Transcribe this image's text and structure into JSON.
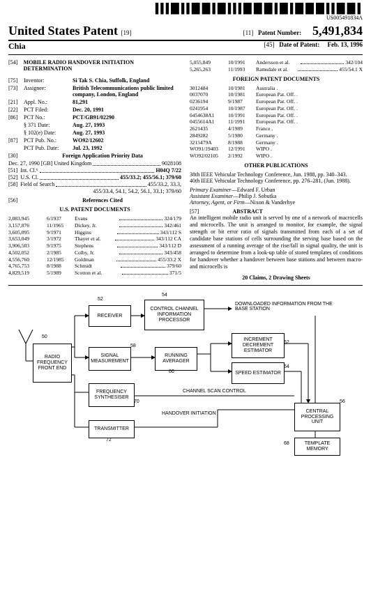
{
  "barcode_number": "US005491834A",
  "header": {
    "title": "United States Patent",
    "code19": "[19]",
    "code11": "[11]",
    "code45": "[45]",
    "pn_label": "Patent Number:",
    "pn_value": "5,491,834",
    "dp_label": "Date of Patent:",
    "dp_value": "Feb. 13, 1996",
    "inventor_surname": "Chia"
  },
  "left": {
    "f54_num": "[54]",
    "f54_title": "MOBILE RADIO HANDOVER INITIATION DETERMINATION",
    "f75_num": "[75]",
    "f75_label": "Inventor:",
    "f75_val": "Si Tak S. Chia, Suffolk, England",
    "f73_num": "[73]",
    "f73_label": "Assignee:",
    "f73_val": "British Telecommunications public limited company, London, England",
    "f21_num": "[21]",
    "f21_label": "Appl. No.:",
    "f21_val": "81,291",
    "f22_num": "[22]",
    "f22_label": "PCT Filed:",
    "f22_val": "Dec. 20, 1991",
    "f86_num": "[86]",
    "f86_label": "PCT No.:",
    "f86_val": "PCT/GB91/02290",
    "f371_label": "§ 371 Date:",
    "f371_val": "Aug. 27, 1993",
    "f102_label": "§ 102(e) Date:",
    "f102_val": "Aug. 27, 1993",
    "f87_num": "[87]",
    "f87_label": "PCT Pub. No.:",
    "f87_val": "WO92/12602",
    "f87d_label": "PCT Pub. Date:",
    "f87d_val": "Jul. 23, 1992",
    "f30_num": "[30]",
    "f30_label": "Foreign Application Priority Data",
    "f30_line": "Dec. 27, 1990   [GB]    United Kingdom",
    "f30_val": "9028108",
    "f51_num": "[51]",
    "f51_label": "Int. Cl.⁶",
    "f51_val": "H04Q 7/22",
    "f52_num": "[52]",
    "f52_label": "U.S. Cl.",
    "f52_val": "455/33.2; 455/56.1; 379/60",
    "f58_num": "[58]",
    "f58_label": "Field of Search",
    "f58_val": "455/33.2, 33.3,",
    "f58_val2": "455/33.4, 54.1, 54.2, 56.1, 33.1; 379/60",
    "f56_num": "[56]",
    "f56_label": "References Cited",
    "usdocs_head": "U.S. PATENT DOCUMENTS",
    "usdocs": [
      {
        "n": "2,083,945",
        "d": "6/1937",
        "a": "Evans",
        "c": "324/179"
      },
      {
        "n": "3,157,876",
        "d": "11/1965",
        "a": "Dickey, Jr.",
        "c": "342/461"
      },
      {
        "n": "3,605,095",
        "d": "9/1971",
        "a": "Higgins",
        "c": "343/112 S"
      },
      {
        "n": "3,653,049",
        "d": "3/1972",
        "a": "Thayer et al.",
        "c": "343/112 CA"
      },
      {
        "n": "3,906,503",
        "d": "9/1975",
        "a": "Stephens",
        "c": "343/112 D"
      },
      {
        "n": "4,502,052",
        "d": "2/1985",
        "a": "Colby, Jr.",
        "c": "343/458"
      },
      {
        "n": "4,556,760",
        "d": "12/1985",
        "a": "Goldman",
        "c": "455/33.2 X"
      },
      {
        "n": "4,765,753",
        "d": "8/1988",
        "a": "Schmidt",
        "c": "379/60"
      },
      {
        "n": "4,829,519",
        "d": "5/1989",
        "a": "Scotton et al.",
        "c": "371/5"
      }
    ]
  },
  "right": {
    "usdocs_cont": [
      {
        "n": "5,055,849",
        "d": "10/1991",
        "a": "Andersson et al.",
        "c": "342/104"
      },
      {
        "n": "5,265,263",
        "d": "11/1993",
        "a": "Ramsdale et al.",
        "c": "455/54.1 X"
      }
    ],
    "foreign_head": "FOREIGN PATENT DOCUMENTS",
    "foreign": [
      {
        "n": "3012484",
        "d": "10/1981",
        "a": "Australia ."
      },
      {
        "n": "0037070",
        "d": "10/1981",
        "a": "European Pat. Off. ."
      },
      {
        "n": "0236194",
        "d": "9/1987",
        "a": "European Pat. Off. ."
      },
      {
        "n": "0241954",
        "d": "10/1987",
        "a": "European Pat. Off. ."
      },
      {
        "n": "0454638A1",
        "d": "10/1991",
        "a": "European Pat. Off. ."
      },
      {
        "n": "0455614A1",
        "d": "11/1991",
        "a": "European Pat. Off. ."
      },
      {
        "n": "2621435",
        "d": "4/1989",
        "a": "France ."
      },
      {
        "n": "2849282",
        "d": "5/1980",
        "a": "Germany ."
      },
      {
        "n": "3215479A",
        "d": "8/1988",
        "a": "Germany ."
      },
      {
        "n": "WO91/19403",
        "d": "12/1991",
        "a": "WIPO ."
      },
      {
        "n": "WO92/02105",
        "d": "2/1992",
        "a": "WIPO ."
      }
    ],
    "other_head": "OTHER PUBLICATIONS",
    "other1": "38th IEEE Vehicular Technology Conference, Jun. 1988, pp. 340–343.",
    "other2": "40th IEEE Vehicular Technology Conference, pp. 276–281, (Jun. 1988).",
    "pe_label": "Primary Examiner",
    "pe_val": "—Edward F. Urban",
    "ae_label": "Assistant Examiner",
    "ae_val": "—Philip J. Sobutka",
    "af_label": "Attorney, Agent, or Firm",
    "af_val": "—Nixon & Vanderhye",
    "abs_num": "[57]",
    "abs_head": "ABSTRACT",
    "abstract": "An intelligent mobile radio unit is served by one of a network of macrocells and microcells. The unit is arranged to monitor, for example, the signal strength or bit error ratio of signals transmitted from each of a set of candidate base stations of cells surrounding the serving base based on the assessment of a running average of the rise/fall in signal quality, the unit is arranged to determine from a look-up table of stored templates of conditions for handover whether a handover between base stations and between macro- and microcells is",
    "claims": "20 Claims, 2 Drawing Sheets"
  },
  "diagram": {
    "boxes": {
      "rf": "RADIO FREQUENCY FRONT END",
      "rx": "RECEIVER",
      "ccip": "CONTROL CHANNEL INFORMATION PROCESSOR",
      "sm": "SIGNAL MEASUREMENT",
      "ra": "RUNNING AVERAGER",
      "fs": "FREQUENCY SYNTHESISER",
      "tx": "TRANSMITTER",
      "ide": "INCREMENT DECREMENT ESTIMATOR",
      "se": "SPEED ESTIMATOR",
      "cpu": "CENTRAL PROCESSING UNIT",
      "tm": "TEMPLATE MEMORY"
    },
    "labels": {
      "dl": "DOWNLOADED INFORMATION FROM THE BASE STATION",
      "csc": "CHANNEL SCAN CONTROL",
      "hi": "HANDOVER INITIATION",
      "n50": "50",
      "n52": "52",
      "n54": "54",
      "n56": "56",
      "n58": "58",
      "n60": "60",
      "n62": "62",
      "n64": "64",
      "n68": "68",
      "n70": "70",
      "n72": "72"
    }
  }
}
